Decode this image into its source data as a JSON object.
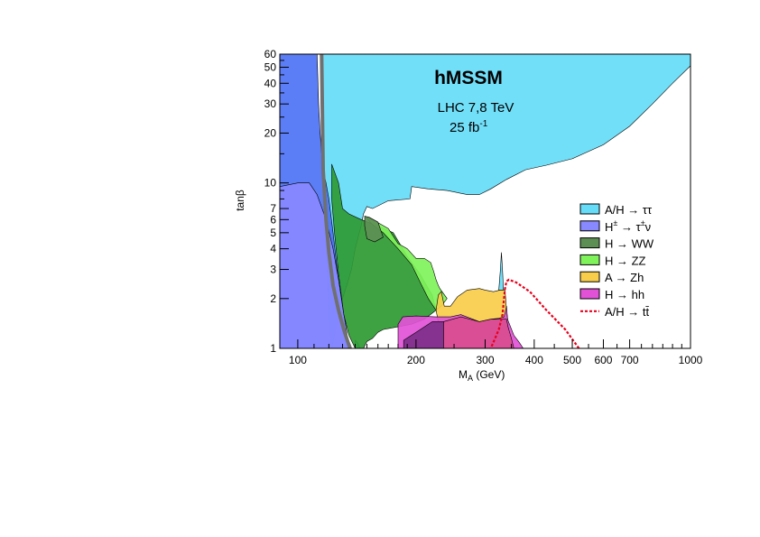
{
  "chart_data": {
    "type": "area",
    "title": "hMSSM",
    "subtitle_line1": "LHC 7,8 TeV",
    "subtitle_line2": "25 fb",
    "subtitle_line2_sup": "-1",
    "xlabel": "M",
    "xlabel_sub": "A",
    "xlabel_unit": " (GeV)",
    "ylabel": "tanβ",
    "xscale": "log",
    "yscale": "log",
    "xlim": [
      90,
      1000
    ],
    "ylim": [
      1,
      60
    ],
    "grid": false,
    "legend_position": "right",
    "x_tick_labels": [
      "100",
      "200",
      "300",
      "400",
      "500",
      "600",
      "700",
      "1000"
    ],
    "x_tick_values": [
      100,
      200,
      300,
      400,
      500,
      600,
      700,
      1000
    ],
    "x_minor_ticks": [
      90,
      800,
      900
    ],
    "y_tick_labels": [
      "1",
      "2",
      "3",
      "4",
      "5",
      "6",
      "7",
      "10",
      "20",
      "30",
      "40",
      "50",
      "60"
    ],
    "y_tick_values": [
      1,
      2,
      3,
      4,
      5,
      6,
      7,
      10,
      20,
      30,
      40,
      50,
      60
    ],
    "y_minor_ticks": [
      8,
      9
    ],
    "series": [
      {
        "name": "A/H → ττ",
        "color": "#66dcf8",
        "points": [
          [
            90,
            60
          ],
          [
            1000,
            60
          ],
          [
            1000,
            51
          ],
          [
            900,
            40
          ],
          [
            800,
            30
          ],
          [
            700,
            22
          ],
          [
            600,
            17
          ],
          [
            500,
            14
          ],
          [
            430,
            12.8
          ],
          [
            380,
            12
          ],
          [
            340,
            10.5
          ],
          [
            310,
            9.2
          ],
          [
            290,
            8.5
          ],
          [
            270,
            8.5
          ],
          [
            240,
            9
          ],
          [
            215,
            9.2
          ],
          [
            195,
            9.5
          ],
          [
            193,
            8
          ],
          [
            170,
            7.8
          ],
          [
            155,
            7
          ],
          [
            150,
            7.2
          ],
          [
            147,
            6.5
          ],
          [
            145,
            5.5
          ],
          [
            140,
            4
          ],
          [
            137,
            3
          ],
          [
            134,
            2.5
          ],
          [
            130,
            2
          ],
          [
            127,
            1.6
          ],
          [
            124,
            1.2
          ],
          [
            122,
            1
          ],
          [
            120,
            1.5
          ],
          [
            118,
            5
          ],
          [
            116,
            15
          ],
          [
            115,
            60
          ]
        ]
      },
      {
        "name": "A/H → ττ",
        "color": "#66dcf8",
        "points": [
          [
            325,
            2.25
          ],
          [
            328,
            3.0
          ],
          [
            330,
            3.8
          ],
          [
            332,
            3.0
          ],
          [
            334,
            2.25
          ]
        ]
      },
      {
        "name": "A/H → ττ",
        "color": "#66dcf8",
        "points": [
          [
            140,
            1
          ],
          [
            140,
            1.12
          ],
          [
            142,
            1.08
          ],
          [
            144,
            1
          ]
        ]
      },
      {
        "name": "",
        "color": "#4d72f5",
        "points": [
          [
            90,
            9.5
          ],
          [
            90,
            60
          ],
          [
            112,
            60
          ],
          [
            113,
            30
          ],
          [
            114,
            20
          ],
          [
            115,
            15
          ],
          [
            116,
            12
          ],
          [
            118,
            10
          ],
          [
            120,
            8
          ],
          [
            123,
            5
          ],
          [
            126,
            3
          ],
          [
            128,
            2.2
          ],
          [
            131,
            1.6
          ],
          [
            133,
            1.2
          ],
          [
            134,
            1
          ],
          [
            90,
            1
          ]
        ]
      },
      {
        "name": "H± → τ±ν",
        "color": "#8888ff",
        "points": [
          [
            90,
            9.5
          ],
          [
            100,
            10
          ],
          [
            107,
            10
          ],
          [
            112,
            8.5
          ],
          [
            118,
            6
          ],
          [
            123,
            4
          ],
          [
            127,
            2.6
          ],
          [
            130,
            1.8
          ],
          [
            133,
            1.3
          ],
          [
            135,
            1
          ],
          [
            90,
            1
          ]
        ]
      },
      {
        "name": "H → WW",
        "color": "#2e9a33",
        "points": [
          [
            122,
            13
          ],
          [
            127,
            10
          ],
          [
            130,
            7
          ],
          [
            135,
            6.5
          ],
          [
            145,
            6
          ],
          [
            160,
            5.5
          ],
          [
            175,
            5
          ],
          [
            190,
            3.6
          ],
          [
            205,
            2.8
          ],
          [
            215,
            2.3
          ],
          [
            220,
            2.1
          ],
          [
            225,
            1.7
          ],
          [
            210,
            1.5
          ],
          [
            195,
            1.4
          ],
          [
            180,
            1.35
          ],
          [
            165,
            1.3
          ],
          [
            160,
            1.25
          ],
          [
            155,
            1.15
          ],
          [
            150,
            1.1
          ],
          [
            147,
            1
          ],
          [
            140,
            1
          ],
          [
            135,
            1.2
          ],
          [
            131,
            1.6
          ],
          [
            127,
            2.8
          ],
          [
            124,
            5
          ],
          [
            122,
            8
          ]
        ]
      },
      {
        "name": "H → ZZ",
        "color": "#7ff35a",
        "points": [
          [
            148,
            6.3
          ],
          [
            155,
            6
          ],
          [
            170,
            5.3
          ],
          [
            180,
            4.3
          ],
          [
            190,
            4
          ],
          [
            200,
            3.5
          ],
          [
            210,
            3.5
          ],
          [
            218,
            3.3
          ],
          [
            222,
            2.9
          ],
          [
            225,
            2.6
          ],
          [
            228,
            2.4
          ],
          [
            230,
            2.3
          ],
          [
            240,
            2
          ],
          [
            232,
            1.8
          ],
          [
            225,
            1.7
          ],
          [
            215,
            2
          ],
          [
            205,
            2.5
          ],
          [
            195,
            3.2
          ],
          [
            180,
            4
          ],
          [
            165,
            5
          ],
          [
            155,
            5.6
          ]
        ]
      },
      {
        "name": "H → WW",
        "color": "#5d8f55",
        "points": [
          [
            148,
            6.3
          ],
          [
            152,
            6.2
          ],
          [
            160,
            5.8
          ],
          [
            165,
            4.7
          ],
          [
            157,
            4.4
          ],
          [
            150,
            4.6
          ],
          [
            148,
            5.5
          ]
        ]
      },
      {
        "name": "A → Zh",
        "color": "#f8cd4a",
        "points": [
          [
            225,
            1.7
          ],
          [
            228,
            2.1
          ],
          [
            232,
            2.2
          ],
          [
            236,
            1.8
          ],
          [
            245,
            1.8
          ],
          [
            255,
            2.05
          ],
          [
            270,
            2.25
          ],
          [
            290,
            2.3
          ],
          [
            300,
            2.25
          ],
          [
            315,
            2.2
          ],
          [
            327,
            2.25
          ],
          [
            337,
            2.25
          ],
          [
            340,
            1.7
          ],
          [
            345,
            1.3
          ],
          [
            340,
            1.2
          ],
          [
            320,
            1.25
          ],
          [
            300,
            1.25
          ],
          [
            275,
            1.3
          ],
          [
            255,
            1.35
          ],
          [
            240,
            1.4
          ],
          [
            228,
            1.45
          ]
        ]
      },
      {
        "name": "H → hh",
        "color": "#e252d7",
        "points": [
          [
            180,
            1.4
          ],
          [
            185,
            1.55
          ],
          [
            200,
            1.57
          ],
          [
            225,
            1.55
          ],
          [
            245,
            1.55
          ],
          [
            260,
            1.6
          ],
          [
            290,
            1.45
          ],
          [
            310,
            1.5
          ],
          [
            325,
            1.52
          ],
          [
            335,
            1.55
          ],
          [
            340,
            1.8
          ],
          [
            342,
            1.5
          ],
          [
            355,
            1.2
          ],
          [
            365,
            1.1
          ],
          [
            375,
            1
          ],
          [
            180,
            1
          ]
        ]
      },
      {
        "name": "",
        "color": "#7e2f8a",
        "points": [
          [
            186,
            1
          ],
          [
            186,
            1.12
          ],
          [
            200,
            1.25
          ],
          [
            220,
            1.45
          ],
          [
            235,
            1.45
          ],
          [
            235,
            1
          ]
        ]
      },
      {
        "name": "",
        "color": "#d94d90",
        "points": [
          [
            235,
            1
          ],
          [
            235,
            1.45
          ],
          [
            260,
            1.55
          ],
          [
            290,
            1.45
          ],
          [
            310,
            1.5
          ],
          [
            330,
            1.5
          ],
          [
            340,
            1.5
          ],
          [
            343,
            1.35
          ],
          [
            350,
            1.15
          ],
          [
            355,
            1
          ]
        ]
      }
    ],
    "exclusion_line": {
      "name": "A/H → tt̄",
      "color": "#e8001c",
      "dash": "3 2",
      "points": [
        [
          520,
          1
        ],
        [
          480,
          1.3
        ],
        [
          430,
          1.7
        ],
        [
          390,
          2.2
        ],
        [
          360,
          2.5
        ],
        [
          345,
          2.6
        ],
        [
          340,
          2.55
        ],
        [
          337,
          2.3
        ],
        [
          335,
          2.0
        ],
        [
          332,
          1.6
        ],
        [
          325,
          1.3
        ],
        [
          318,
          1.15
        ],
        [
          310,
          1
        ]
      ]
    },
    "black_band": {
      "color": "#707070",
      "points": [
        [
          115,
          60
        ],
        [
          116,
          12
        ],
        [
          118,
          6
        ],
        [
          120,
          3.8
        ],
        [
          123,
          2.4
        ],
        [
          127,
          1.7
        ],
        [
          131,
          1.3
        ],
        [
          134,
          1.1
        ],
        [
          136,
          1
        ]
      ]
    },
    "legend": [
      {
        "label": "A/H → ττ",
        "color": "#66dcf8",
        "kind": "box"
      },
      {
        "label_main": "H",
        "label_sup": "±",
        "label_rest": " → τ",
        "label_sup2": "±",
        "label_end": "ν",
        "color": "#8888ff",
        "kind": "box"
      },
      {
        "label": "H → WW",
        "color": "#5d8f55",
        "kind": "box"
      },
      {
        "label": "H → ZZ",
        "color": "#7ff35a",
        "kind": "box"
      },
      {
        "label": "A → Zh",
        "color": "#f8cd4a",
        "kind": "box"
      },
      {
        "label": "H → hh",
        "color": "#e252d7",
        "kind": "box"
      },
      {
        "label": "A/H → tt̄",
        "color": "#e8001c",
        "kind": "dash"
      }
    ]
  }
}
